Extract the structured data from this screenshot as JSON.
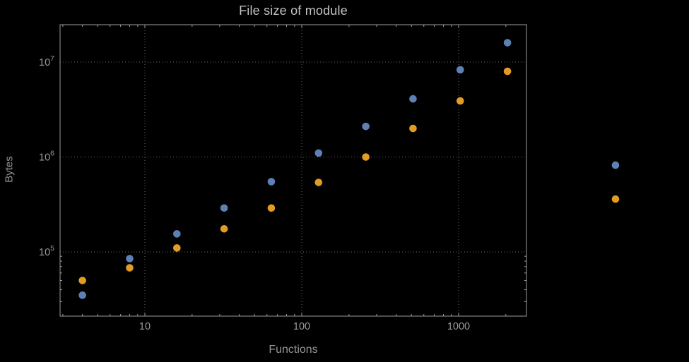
{
  "chart_data": {
    "type": "scatter",
    "title": "File size of module",
    "xlabel": "Functions",
    "ylabel": "Bytes",
    "x_scale": "log",
    "y_scale": "log",
    "grid": "dotted",
    "legend": "none",
    "x_range_approx": [
      3,
      2700
    ],
    "y_range_approx": [
      21000,
      25000000
    ],
    "x_ticks": [
      {
        "value": 10,
        "label": "10"
      },
      {
        "value": 100,
        "label": "100"
      },
      {
        "value": 1000,
        "label": "1000"
      }
    ],
    "y_ticks": [
      {
        "value": 100000,
        "label_base": "10",
        "label_exp": "5"
      },
      {
        "value": 1000000,
        "label_base": "10",
        "label_exp": "6"
      },
      {
        "value": 10000000,
        "label_base": "10",
        "label_exp": "7"
      }
    ],
    "colors": {
      "background": "#000000",
      "frame": "#9c9c9c",
      "grid": "#6a6a6a",
      "tick_label": "#9b9b9b",
      "title": "#c3c3c3",
      "axis_label": "#969696",
      "series_blue": "#5E81B5",
      "series_orange": "#E19C24"
    },
    "series": [
      {
        "name": "blue",
        "color": "#5E81B5",
        "points": [
          [
            4,
            35000
          ],
          [
            8,
            85000
          ],
          [
            16,
            155000
          ],
          [
            32,
            290000
          ],
          [
            64,
            550000
          ],
          [
            128,
            1100000
          ],
          [
            256,
            2100000
          ],
          [
            512,
            4100000
          ],
          [
            1024,
            8300000
          ],
          [
            2048,
            16000000
          ],
          [
            10000,
            820000
          ]
        ]
      },
      {
        "name": "orange",
        "color": "#E19C24",
        "points": [
          [
            4,
            50000
          ],
          [
            8,
            68000
          ],
          [
            16,
            110000
          ],
          [
            32,
            175000
          ],
          [
            64,
            290000
          ],
          [
            128,
            540000
          ],
          [
            256,
            1000000
          ],
          [
            512,
            2000000
          ],
          [
            1024,
            3900000
          ],
          [
            2048,
            8000000
          ],
          [
            10000,
            360000
          ]
        ]
      }
    ]
  }
}
